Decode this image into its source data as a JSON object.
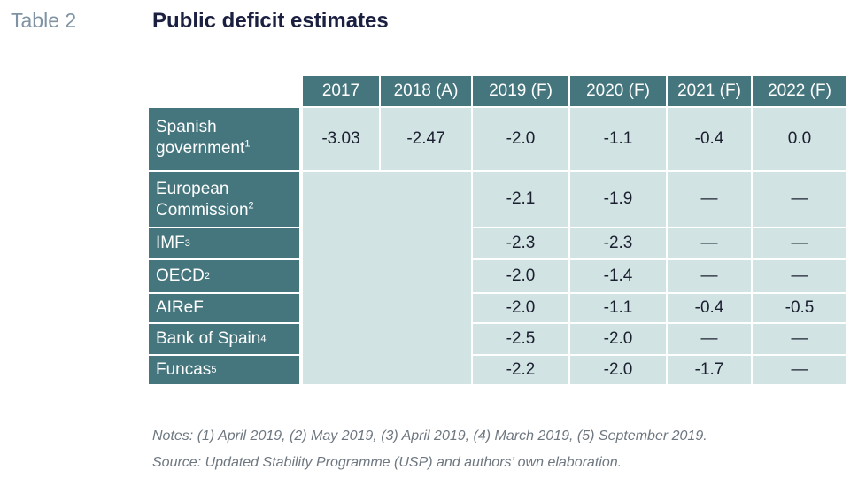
{
  "table_label": "Table 2",
  "title": "Public deficit estimates",
  "columns": [
    "2017",
    "2018 (A)",
    "2019 (F)",
    "2020 (F)",
    "2021 (F)",
    "2022 (F)"
  ],
  "rows": [
    {
      "label": "Spanish government",
      "note": "1",
      "values": [
        "-3.03",
        "-2.47",
        "-2.0",
        "-1.1",
        "-0.4",
        "0.0"
      ]
    },
    {
      "label": "European Commission",
      "note": "2",
      "values": [
        "",
        "",
        "-2.1",
        "-1.9",
        "—",
        "—"
      ]
    },
    {
      "label": "IMF",
      "note": "3",
      "values": [
        "",
        "",
        "-2.3",
        "-2.3",
        "—",
        "—"
      ]
    },
    {
      "label": "OECD",
      "note": "2",
      "values": [
        "",
        "",
        "-2.0",
        "-1.4",
        "—",
        "—"
      ]
    },
    {
      "label": "AIReF",
      "note": "",
      "values": [
        "",
        "",
        "-2.0",
        "-1.1",
        "-0.4",
        "-0.5"
      ]
    },
    {
      "label": "Bank of Spain",
      "note": "4",
      "values": [
        "",
        "",
        "-2.5",
        "-2.0",
        "—",
        "—"
      ]
    },
    {
      "label": "Funcas",
      "note": "5",
      "values": [
        "",
        "",
        "-2.2",
        "-2.0",
        "-1.7",
        "—"
      ]
    }
  ],
  "notes": [
    "Notes: (1) April 2019, (2) May 2019, (3) April 2019, (4) March 2019, (5) September 2019.",
    "Source: Updated Stability Programme (USP) and authors’ own elaboration."
  ],
  "colors": {
    "header": "#45767e",
    "cell": "#d2e3e3",
    "title": "#1b2040",
    "label": "#7f93a4"
  }
}
